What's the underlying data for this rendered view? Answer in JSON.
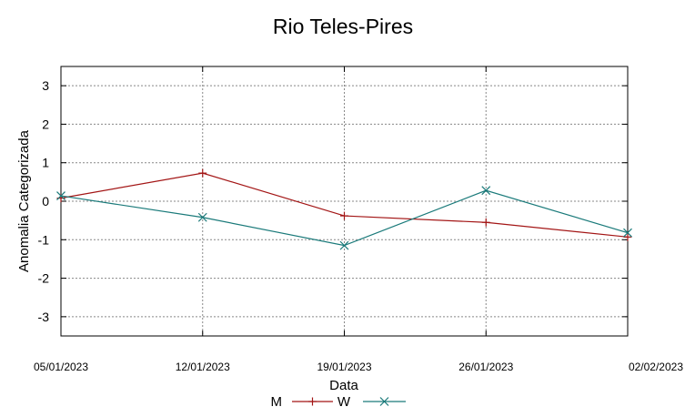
{
  "chart_data": {
    "type": "line",
    "title": "Rio Teles-Pires",
    "xlabel": "Data",
    "ylabel": "Anomalia Categorizada",
    "x": [
      "05/01/2023",
      "12/01/2023",
      "19/01/2023",
      "26/01/2023",
      "02/02/2023"
    ],
    "ylim": [
      -3.5,
      3.5
    ],
    "yticks": [
      3,
      2,
      1,
      0,
      -1,
      -2,
      -3
    ],
    "ytick_labels": [
      "3",
      "2",
      "1",
      "0",
      "-1",
      "-2",
      "-3"
    ],
    "grid": true,
    "legend_position": "bottom",
    "series": [
      {
        "name": "M",
        "values": [
          0.08,
          0.73,
          -0.38,
          -0.55,
          -0.93
        ],
        "color": "#a31515",
        "marker": "plus"
      },
      {
        "name": "W",
        "values": [
          0.14,
          -0.42,
          -1.15,
          0.28,
          -0.82
        ],
        "color": "#1a7a7a",
        "marker": "cross"
      }
    ]
  }
}
